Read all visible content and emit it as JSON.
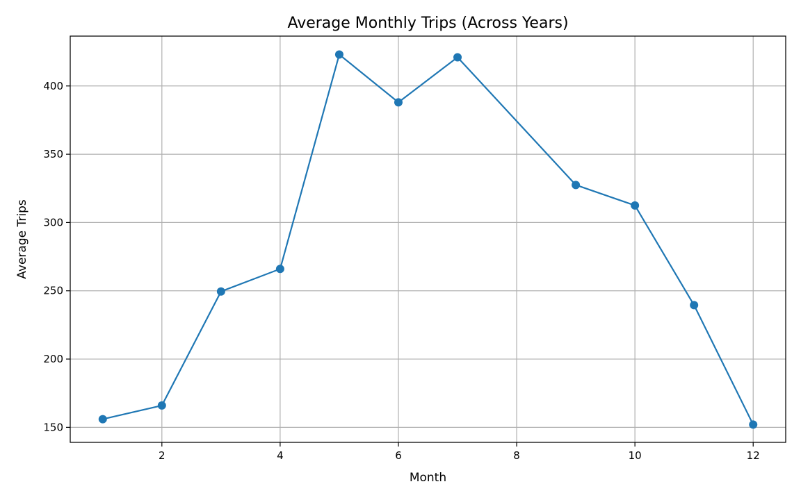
{
  "chart_data": {
    "type": "line",
    "title": "Average Monthly Trips (Across Years)",
    "xlabel": "Month",
    "ylabel": "Average Trips",
    "xlim": [
      0.45,
      12.55
    ],
    "ylim": [
      139,
      436.5
    ],
    "xticks": [
      2,
      4,
      6,
      8,
      10,
      12
    ],
    "yticks": [
      150,
      200,
      250,
      300,
      350,
      400
    ],
    "grid": true,
    "series": [
      {
        "color": "#1f77b4",
        "marker": "circle",
        "points": [
          {
            "x": 1,
            "y": 156
          },
          {
            "x": 2,
            "y": 166
          },
          {
            "x": 3,
            "y": 249.5
          },
          {
            "x": 4,
            "y": 266
          },
          {
            "x": 5,
            "y": 423
          },
          {
            "x": 6,
            "y": 388
          },
          {
            "x": 7,
            "y": 421
          },
          {
            "x": 9,
            "y": 327.5
          },
          {
            "x": 10,
            "y": 312.5
          },
          {
            "x": 11,
            "y": 239.5
          },
          {
            "x": 12,
            "y": 152
          }
        ]
      }
    ]
  }
}
